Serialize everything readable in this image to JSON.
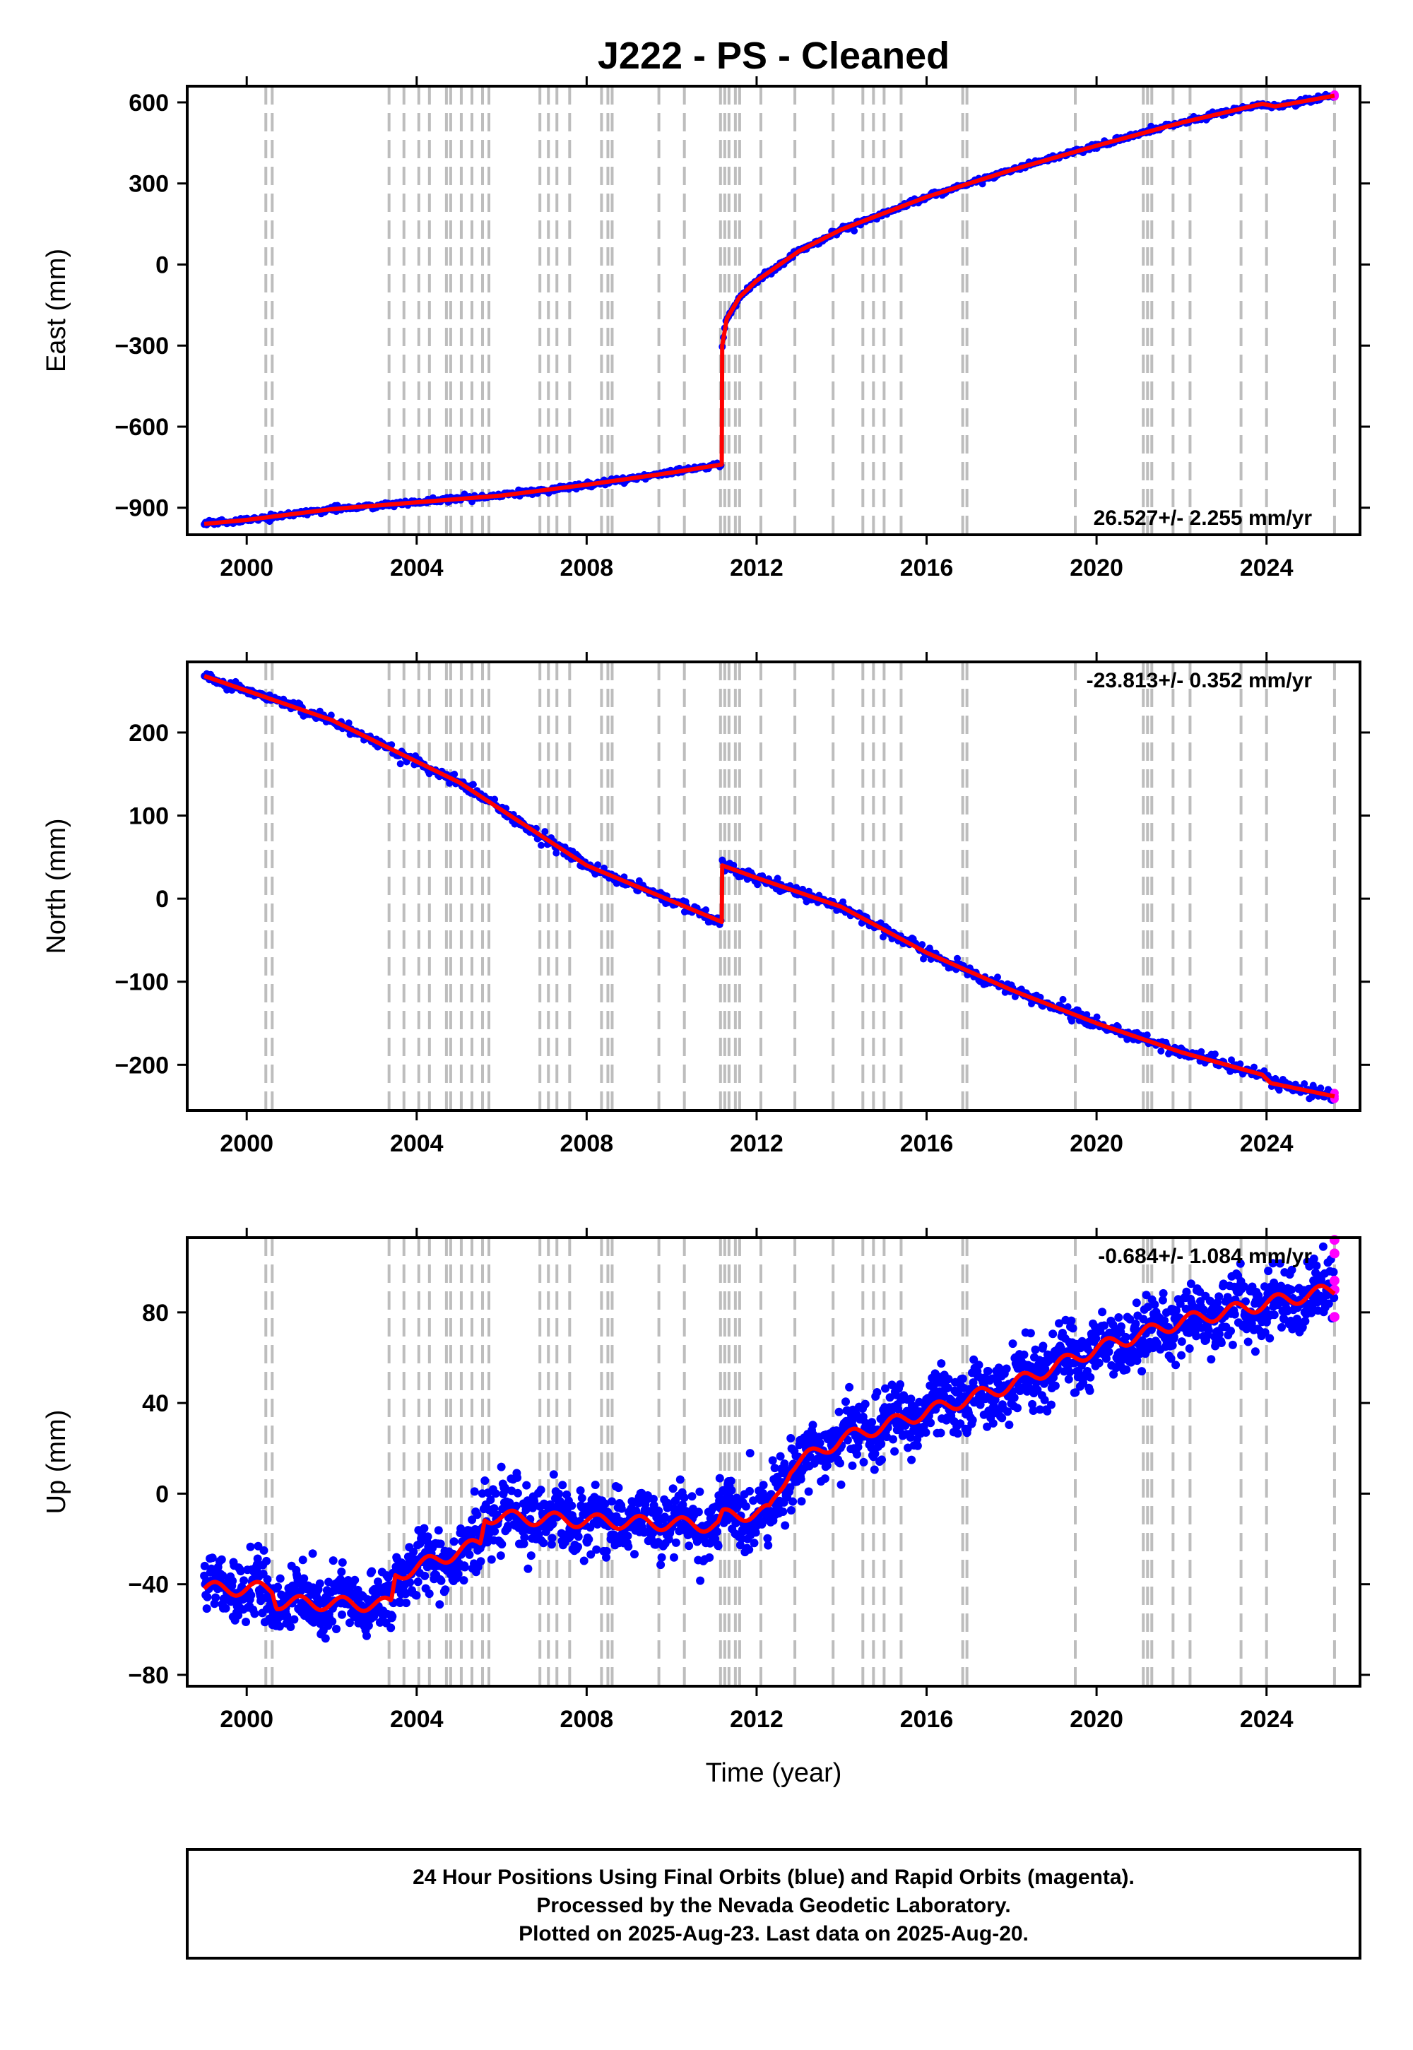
{
  "title": "J222  - PS - Cleaned",
  "footer": {
    "line1": "24 Hour Positions Using Final Orbits (blue) and Rapid Orbits (magenta).",
    "line2": "Processed by the Nevada Geodetic Laboratory.",
    "line3": "Plotted on 2025-Aug-23. Last data on 2025-Aug-20."
  },
  "colors": {
    "final_orbits": "#0000ff",
    "rapid_orbits": "#ff00ff",
    "model": "#ff0000",
    "event_lines": "#bdbdbd",
    "frame": "#000000"
  },
  "chart_data": [
    {
      "type": "scatter",
      "xlabel": "",
      "ylabel": "East (mm)",
      "rate_label": "26.527+/- 2.255 mm/yr",
      "rate_position": "bottom-right",
      "x_ticks": [
        "2000",
        "2004",
        "2008",
        "2012",
        "2016",
        "2020",
        "2024"
      ],
      "y_ticks": [
        "600",
        "300",
        "0",
        "-300",
        "-600",
        "-900"
      ],
      "xlim": [
        1998.6,
        2026.2
      ],
      "ylim": [
        -1000,
        660
      ],
      "grid": false,
      "model_points": [
        [
          1999.0,
          -960
        ],
        [
          2000.0,
          -945
        ],
        [
          2002.0,
          -905
        ],
        [
          2004.0,
          -880
        ],
        [
          2006.0,
          -855
        ],
        [
          2008.0,
          -815
        ],
        [
          2010.0,
          -770
        ],
        [
          2011.18,
          -740
        ],
        [
          2011.19,
          -300
        ],
        [
          2011.3,
          -200
        ],
        [
          2011.6,
          -120
        ],
        [
          2012.0,
          -60
        ],
        [
          2013.0,
          50
        ],
        [
          2014.0,
          130
        ],
        [
          2016.0,
          250
        ],
        [
          2018.0,
          350
        ],
        [
          2020.0,
          440
        ],
        [
          2022.0,
          525
        ],
        [
          2023.9,
          595
        ],
        [
          2024.2,
          585
        ],
        [
          2025.6,
          625
        ]
      ]
    },
    {
      "type": "scatter",
      "xlabel": "",
      "ylabel": "North (mm)",
      "rate_label": "-23.813+/- 0.352 mm/yr",
      "rate_position": "top-right",
      "x_ticks": [
        "2000",
        "2004",
        "2008",
        "2012",
        "2016",
        "2020",
        "2024"
      ],
      "y_ticks": [
        "200",
        "100",
        "0",
        "-100",
        "-200"
      ],
      "xlim": [
        1998.6,
        2026.2
      ],
      "ylim": [
        -255,
        285
      ],
      "grid": false,
      "model_points": [
        [
          1999.0,
          268
        ],
        [
          2002.0,
          215
        ],
        [
          2005.0,
          140
        ],
        [
          2008.0,
          40
        ],
        [
          2011.18,
          -28
        ],
        [
          2011.19,
          40
        ],
        [
          2012.0,
          25
        ],
        [
          2014.0,
          -10
        ],
        [
          2016.0,
          -65
        ],
        [
          2018.0,
          -110
        ],
        [
          2020.0,
          -150
        ],
        [
          2022.0,
          -185
        ],
        [
          2023.9,
          -212
        ],
        [
          2024.1,
          -222
        ],
        [
          2025.6,
          -238
        ]
      ]
    },
    {
      "type": "scatter",
      "xlabel": "Time (year)",
      "ylabel": "Up (mm)",
      "rate_label": "-0.684+/- 1.084 mm/yr",
      "rate_position": "top-right",
      "x_ticks": [
        "2000",
        "2004",
        "2008",
        "2012",
        "2016",
        "2020",
        "2024"
      ],
      "y_ticks": [
        "80",
        "40",
        "0",
        "-40",
        "-80"
      ],
      "xlim": [
        1998.6,
        2026.2
      ],
      "ylim": [
        -85,
        113
      ],
      "grid": false,
      "model_points": [
        [
          1999.0,
          -42
        ],
        [
          2000.6,
          -42
        ],
        [
          2000.7,
          -48
        ],
        [
          2003.4,
          -49
        ],
        [
          2003.5,
          -36
        ],
        [
          2005.5,
          -22
        ],
        [
          2005.6,
          -10
        ],
        [
          2008.0,
          -12
        ],
        [
          2011.1,
          -14
        ],
        [
          2011.2,
          -10
        ],
        [
          2012.3,
          -8
        ],
        [
          2012.8,
          12
        ],
        [
          2014.0,
          24
        ],
        [
          2016.0,
          36
        ],
        [
          2018.0,
          48
        ],
        [
          2020.0,
          64
        ],
        [
          2022.0,
          76
        ],
        [
          2024.0,
          84
        ],
        [
          2025.6,
          90
        ]
      ]
    }
  ],
  "event_lines_years": [
    2000.45,
    2000.6,
    2003.35,
    2003.7,
    2004.05,
    2004.3,
    2004.7,
    2004.8,
    2005.05,
    2005.3,
    2005.55,
    2005.7,
    2006.9,
    2007.1,
    2007.3,
    2007.6,
    2008.35,
    2008.5,
    2008.6,
    2009.7,
    2010.3,
    2011.15,
    2011.25,
    2011.35,
    2011.5,
    2011.6,
    2012.1,
    2012.9,
    2013.8,
    2014.5,
    2014.75,
    2015.0,
    2015.4,
    2016.85,
    2016.95,
    2019.5,
    2021.1,
    2021.2,
    2021.3,
    2021.8,
    2022.2,
    2023.4,
    2024.0,
    2025.6
  ]
}
